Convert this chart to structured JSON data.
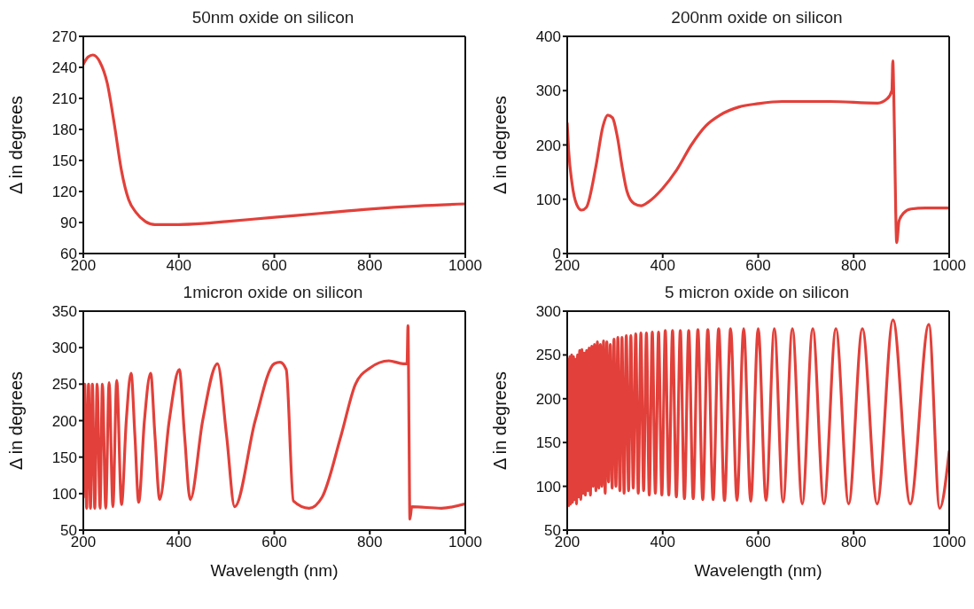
{
  "chart_data": [
    {
      "type": "line",
      "title": "50nm oxide on silicon",
      "ylabel": "Δ in degrees",
      "xlim": [
        200,
        1000
      ],
      "xticks": [
        200,
        400,
        600,
        800,
        1000
      ],
      "ylim": [
        60,
        270
      ],
      "yticks": [
        60,
        90,
        120,
        150,
        180,
        210,
        240,
        270
      ],
      "x": [
        200,
        210,
        220,
        235,
        250,
        265,
        280,
        295,
        310,
        330,
        350,
        400,
        450,
        500,
        600,
        700,
        800,
        900,
        1000
      ],
      "series": [
        {
          "color": "#e2403a",
          "values": [
            243,
            250,
            252,
            245,
            225,
            185,
            140,
            112,
            100,
            91,
            88,
            88,
            89,
            91,
            95,
            99,
            103,
            106,
            108
          ]
        }
      ]
    },
    {
      "type": "line",
      "title": "200nm oxide on silicon",
      "ylabel": "Δ in degrees",
      "xlim": [
        200,
        1000
      ],
      "xticks": [
        200,
        400,
        600,
        800,
        1000
      ],
      "ylim": [
        0,
        400
      ],
      "yticks": [
        0,
        100,
        200,
        300,
        400
      ],
      "x": [
        200,
        203,
        210,
        220,
        230,
        240,
        260,
        275,
        285,
        295,
        305,
        315,
        325,
        340,
        355,
        370,
        400,
        430,
        460,
        490,
        520,
        560,
        600,
        650,
        750,
        850,
        870,
        880,
        882,
        884,
        886,
        888,
        890,
        895,
        905,
        920,
        950,
        1000
      ],
      "series": [
        {
          "color": "#e2403a",
          "values": [
            240,
            190,
            130,
            90,
            80,
            85,
            160,
            235,
            255,
            250,
            215,
            160,
            115,
            92,
            88,
            95,
            120,
            155,
            200,
            235,
            255,
            270,
            276,
            280,
            280,
            277,
            285,
            300,
            355,
            290,
            190,
            80,
            20,
            60,
            75,
            82,
            84,
            84
          ]
        }
      ]
    },
    {
      "type": "line",
      "title": "1micron oxide on silicon",
      "xlabel": "Wavelength (nm)",
      "ylabel": "Δ in degrees",
      "xlim": [
        200,
        1000
      ],
      "xticks": [
        200,
        400,
        600,
        800,
        1000
      ],
      "ylim": [
        50,
        350
      ],
      "yticks": [
        50,
        100,
        150,
        200,
        250,
        300,
        350
      ],
      "x": [
        200,
        203,
        207,
        211,
        215,
        219,
        224,
        229,
        235,
        240,
        247,
        254,
        262,
        270,
        280,
        290,
        300,
        308,
        316,
        328,
        341,
        350,
        360,
        380,
        401,
        412,
        424,
        450,
        481,
        500,
        517,
        560,
        600,
        612,
        625,
        640,
        673,
        700,
        740,
        770,
        800,
        840,
        870,
        878,
        880,
        882,
        884,
        888,
        950,
        1000
      ],
      "series": [
        {
          "color": "#e2403a",
          "values": [
            95,
            250,
            80,
            250,
            80,
            250,
            80,
            250,
            80,
            250,
            80,
            252,
            82,
            255,
            85,
            200,
            265,
            180,
            88,
            200,
            265,
            180,
            92,
            200,
            270,
            180,
            92,
            200,
            278,
            180,
            82,
            200,
            278,
            280,
            270,
            90,
            80,
            95,
            180,
            250,
            272,
            282,
            278,
            278,
            330,
            200,
            65,
            82,
            80,
            86
          ]
        }
      ]
    },
    {
      "type": "line",
      "title": "5 micron oxide on silicon",
      "xlabel": "Wavelength (nm)",
      "ylabel": "Δ in degrees",
      "xlim": [
        200,
        1000
      ],
      "xticks": [
        200,
        400,
        600,
        800,
        1000
      ],
      "ylim": [
        50,
        300
      ],
      "yticks": [
        50,
        100,
        150,
        200,
        250,
        300
      ],
      "x": [
        200,
        201.8,
        203.6,
        205.5,
        207.4,
        209.3,
        211.3,
        213.3,
        215.3,
        217.4,
        219.5,
        221.7,
        223.9,
        226.1,
        228.4,
        230.8,
        233.2,
        235.6,
        238.1,
        240.6,
        243.2,
        245.9,
        248.6,
        251.4,
        254.2,
        257.1,
        260.1,
        263.2,
        266.3,
        269.5,
        272.7,
        276.1,
        279.5,
        283.0,
        286.6,
        290.3,
        294.1,
        298.0,
        302.0,
        306.1,
        310.3,
        314.7,
        319.1,
        323.7,
        328.5,
        333.3,
        338.3,
        343.5,
        348.8,
        354.3,
        360.0,
        365.9,
        371.9,
        378.2,
        384.6,
        391.3,
        398.2,
        405.4,
        412.8,
        420.6,
        428.6,
        436.9,
        445.5,
        454.5,
        463.9,
        473.7,
        483.9,
        494.5,
        505.6,
        517.2,
        529.4,
        542.2,
        555.6,
        569.6,
        584.4,
        600.0,
        616.4,
        633.8,
        652.2,
        671.6,
        692.3,
        714.3,
        737.7,
        762.7,
        789.5,
        818.2,
        849.1,
        882.4,
        918.4,
        957.4,
        980,
        1000
      ],
      "series": [
        {
          "color": "#e2403a",
          "values": [
            200,
            245,
            78,
            248,
            80,
            250,
            82,
            248,
            85,
            245,
            80,
            250,
            88,
            255,
            85,
            256,
            92,
            252,
            90,
            255,
            95,
            258,
            90,
            260,
            100,
            262,
            95,
            265,
            98,
            262,
            100,
            266,
            92,
            265,
            105,
            262,
            98,
            268,
            100,
            270,
            95,
            270,
            92,
            272,
            95,
            272,
            98,
            274,
            92,
            275,
            95,
            275,
            90,
            276,
            92,
            276,
            90,
            278,
            90,
            278,
            88,
            278,
            86,
            278,
            86,
            279,
            85,
            279,
            85,
            280,
            84,
            280,
            84,
            280,
            83,
            280,
            84,
            280,
            82,
            280,
            80,
            280,
            80,
            280,
            80,
            280,
            80,
            290,
            80,
            285,
            75,
            140
          ]
        }
      ]
    }
  ]
}
